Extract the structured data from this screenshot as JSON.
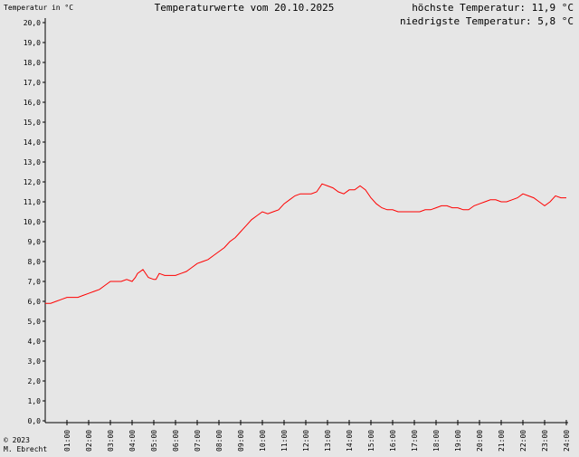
{
  "header": {
    "title": "Temperaturwerte vom 20.10.2025",
    "max_label": "höchste Temperatur: 11,9 °C",
    "min_label": "niedrigste Temperatur: 5,8 °C"
  },
  "footer": {
    "copyright": "© 2023",
    "author": "M. Ebrecht"
  },
  "colors": {
    "background": "#e6e6e6",
    "line": "#ff0000",
    "axis": "#000000"
  },
  "chart_data": {
    "type": "line",
    "title": "Temperaturwerte vom 20.10.2025",
    "ylabel": "Temperatur in °C",
    "xlabel": "",
    "xlim": [
      0,
      24
    ],
    "ylim": [
      0,
      20
    ],
    "grid": false,
    "y_ticks": [
      "0,0",
      "1,0",
      "2,0",
      "3,0",
      "4,0",
      "5,0",
      "6,0",
      "7,0",
      "8,0",
      "9,0",
      "10,0",
      "11,0",
      "12,0",
      "13,0",
      "14,0",
      "15,0",
      "16,0",
      "17,0",
      "18,0",
      "19,0",
      "20,0"
    ],
    "x_ticks": [
      "01:00",
      "02:00",
      "03:00",
      "04:00",
      "05:00",
      "06:00",
      "07:00",
      "08:00",
      "09:00",
      "10:00",
      "11:00",
      "12:00",
      "13:00",
      "14:00",
      "15:00",
      "16:00",
      "17:00",
      "18:00",
      "19:00",
      "20:00",
      "21:00",
      "22:00",
      "23:00",
      "24:00"
    ],
    "series": [
      {
        "x": [
          0,
          0.25,
          0.5,
          0.75,
          1,
          1.25,
          1.5,
          1.75,
          2,
          2.25,
          2.5,
          2.75,
          3,
          3.25,
          3.5,
          3.75,
          4,
          4.15,
          4.25,
          4.5,
          4.75,
          5,
          5.1,
          5.25,
          5.5,
          5.75,
          6,
          6.25,
          6.5,
          6.75,
          7,
          7.25,
          7.5,
          7.75,
          8,
          8.25,
          8.5,
          8.75,
          9,
          9.25,
          9.5,
          9.75,
          10,
          10.25,
          10.5,
          10.75,
          11,
          11.25,
          11.5,
          11.75,
          12,
          12.25,
          12.5,
          12.75,
          13,
          13.25,
          13.5,
          13.75,
          14,
          14.25,
          14.5,
          14.75,
          15,
          15.25,
          15.5,
          15.75,
          16,
          16.25,
          16.5,
          16.75,
          17,
          17.25,
          17.5,
          17.75,
          18,
          18.25,
          18.5,
          18.75,
          19,
          19.25,
          19.5,
          19.75,
          20,
          20.25,
          20.5,
          20.75,
          21,
          21.25,
          21.5,
          21.75,
          22,
          22.25,
          22.5,
          22.75,
          23,
          23.25,
          23.5,
          23.75,
          24
        ],
        "y": [
          5.9,
          5.9,
          6.0,
          6.1,
          6.2,
          6.2,
          6.2,
          6.3,
          6.4,
          6.5,
          6.6,
          6.8,
          7.0,
          7.0,
          7.0,
          7.1,
          7.0,
          7.2,
          7.4,
          7.6,
          7.2,
          7.1,
          7.1,
          7.4,
          7.3,
          7.3,
          7.3,
          7.4,
          7.5,
          7.7,
          7.9,
          8.0,
          8.1,
          8.3,
          8.5,
          8.7,
          9.0,
          9.2,
          9.5,
          9.8,
          10.1,
          10.3,
          10.5,
          10.4,
          10.5,
          10.6,
          10.9,
          11.1,
          11.3,
          11.4,
          11.4,
          11.4,
          11.5,
          11.9,
          11.8,
          11.7,
          11.5,
          11.4,
          11.6,
          11.6,
          11.8,
          11.6,
          11.2,
          10.9,
          10.7,
          10.6,
          10.6,
          10.5,
          10.5,
          10.5,
          10.5,
          10.5,
          10.6,
          10.6,
          10.7,
          10.8,
          10.8,
          10.7,
          10.7,
          10.6,
          10.6,
          10.8,
          10.9,
          11.0,
          11.1,
          11.1,
          11.0,
          11.0,
          11.1,
          11.2,
          11.4,
          11.3,
          11.2,
          11.0,
          10.8,
          11.0,
          11.3,
          11.2,
          11.2
        ]
      }
    ]
  }
}
